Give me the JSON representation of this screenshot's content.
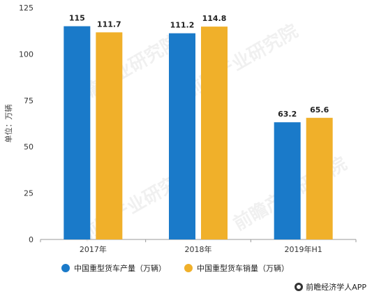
{
  "chart_data": {
    "type": "bar",
    "categories": [
      "2017年",
      "2018年",
      "2019年H1"
    ],
    "series": [
      {
        "name": "中国重型货车产量（万辆）",
        "values": [
          115,
          111.2,
          63.2
        ],
        "labels": [
          "115",
          "111.2",
          "63.2"
        ],
        "color": "#1a7ac9"
      },
      {
        "name": "中国重型货车销量（万辆）",
        "values": [
          111.7,
          114.8,
          65.6
        ],
        "labels": [
          "111.7",
          "114.8",
          "65.6"
        ],
        "color": "#f0b02a"
      }
    ],
    "ylabel": "单位：万辆",
    "ylim": [
      0,
      125
    ],
    "yticks": [
      "0",
      "25",
      "50",
      "75",
      "100",
      "125"
    ],
    "grid": false,
    "legend": "bottom"
  },
  "watermark": "前瞻产业研究院",
  "brand": {
    "text": "前瞻经济学人APP",
    "icon": "brand-logo-icon"
  }
}
